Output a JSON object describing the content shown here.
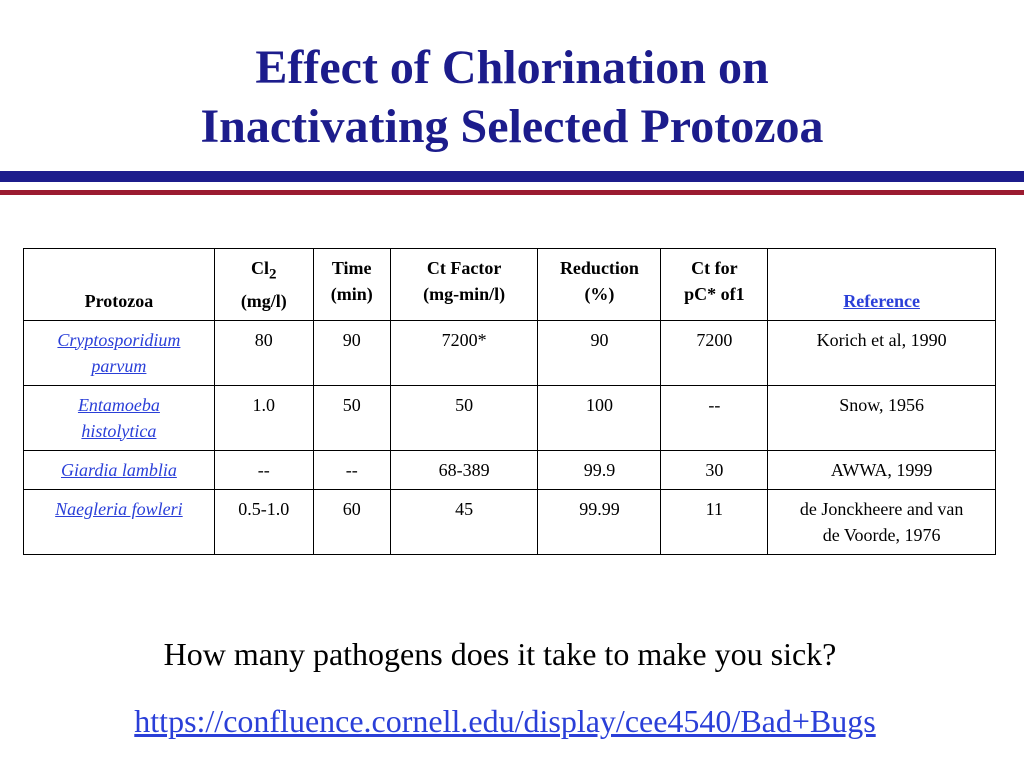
{
  "slide": {
    "title_line1": "Effect of Chlorination on",
    "title_line2": "Inactivating Selected Protozoa",
    "question": "How many pathogens does it take to make you sick?",
    "url": "https://confluence.cornell.edu/display/cee4540/Bad+Bugs"
  },
  "table": {
    "headers": {
      "protozoa": "Protozoa",
      "cl_main": "Cl",
      "cl_sub": "2",
      "cl_unit": "(mg/l)",
      "time": "Time",
      "time_unit": "(min)",
      "ct": "Ct Factor",
      "ct_unit": "(mg-min/l)",
      "reduction": "Reduction",
      "reduction_unit": "(%)",
      "ctfor": "Ct for",
      "ctfor_2": "pC* of1",
      "reference": "Reference"
    },
    "rows": [
      {
        "protozoa_1": "Cryptosporidium",
        "protozoa_2": "parvum",
        "cl2": "80",
        "time": "90",
        "ct": "7200*",
        "reduction": "90",
        "ctfor": "7200",
        "reference": "Korich et al, 1990"
      },
      {
        "protozoa_1": "Entamoeba",
        "protozoa_2": "histolytica",
        "cl2": "1.0",
        "time": "50",
        "ct": "50",
        "reduction": "100",
        "ctfor": "--",
        "reference": "Snow, 1956"
      },
      {
        "protozoa_1": "Giardia lamblia",
        "cl2": "--",
        "time": "--",
        "ct": "68-389",
        "reduction": "99.9",
        "ctfor": "30",
        "reference": "AWWA, 1999"
      },
      {
        "protozoa_1": "Naegleria fowleri",
        "cl2": "0.5-1.0",
        "time": "60",
        "ct": "45",
        "reduction": "99.99",
        "ctfor": "11",
        "reference_1": "de Jonckheere and van",
        "reference_2": "de Voorde, 1976"
      }
    ]
  },
  "colors": {
    "title": "#1c1c8c",
    "rule_blue": "#1c1c8c",
    "rule_red": "#9b1b30",
    "link": "#2a3fd8"
  }
}
